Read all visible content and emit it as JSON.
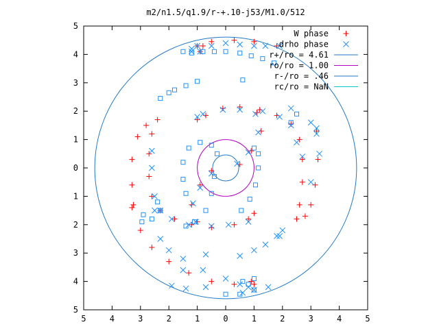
{
  "chart_data": {
    "type": "scatter",
    "title": "m2/n1.5/q1.9/r-+.10-j53/M1.0/512",
    "xlabel": "",
    "ylabel": "",
    "xlim": [
      -5,
      5
    ],
    "ylim": [
      -5,
      5
    ],
    "x_ticks": [
      -5,
      -4,
      -3,
      -2,
      -1,
      0,
      1,
      2,
      3,
      4,
      5
    ],
    "y_ticks": [
      -5,
      -4,
      -3,
      -2,
      -1,
      0,
      1,
      2,
      3,
      4,
      5
    ],
    "x_tick_labels": [
      "5",
      "4",
      "3",
      "2",
      "1",
      "0",
      "1",
      "2",
      "3",
      "4",
      "5"
    ],
    "y_tick_labels": [
      "5",
      "4",
      "3",
      "2",
      "1",
      "0",
      "1",
      "2",
      "3",
      "4",
      "5"
    ],
    "grid": false,
    "legend_position": "top-right",
    "series": [
      {
        "name": "W phase",
        "marker": "plus",
        "color": "#ff0000",
        "points": [
          [
            0.5,
            0.12
          ],
          [
            0.9,
            0.6
          ],
          [
            1.25,
            1.3
          ],
          [
            1.1,
            1.95
          ],
          [
            0.5,
            2.15
          ],
          [
            -0.1,
            2.1
          ],
          [
            -0.7,
            1.85
          ],
          [
            -1.0,
            1.7
          ],
          [
            1.2,
            2.05
          ],
          [
            1.8,
            1.85
          ],
          [
            2.3,
            1.55
          ],
          [
            2.6,
            1.0
          ],
          [
            2.7,
            0.3
          ],
          [
            2.7,
            -0.5
          ],
          [
            2.6,
            -1.3
          ],
          [
            2.5,
            -1.8
          ],
          [
            3.2,
            1.3
          ],
          [
            3.25,
            0.3
          ],
          [
            3.15,
            -0.6
          ],
          [
            3.0,
            -1.3
          ],
          [
            2.8,
            -1.7
          ],
          [
            -3.3,
            -1.4
          ],
          [
            -3.0,
            -2.2
          ],
          [
            -2.6,
            -2.8
          ],
          [
            -2.0,
            -3.3
          ],
          [
            -1.3,
            -3.7
          ],
          [
            -0.5,
            -4.0
          ],
          [
            0.3,
            -4.1
          ],
          [
            0.9,
            -4.0
          ],
          [
            1.0,
            -4.1
          ],
          [
            -0.5,
            -0.1
          ],
          [
            -0.9,
            -0.6
          ],
          [
            -1.2,
            -1.3
          ],
          [
            -1.0,
            -1.9
          ],
          [
            -0.5,
            -2.1
          ],
          [
            0.3,
            -2.0
          ],
          [
            0.8,
            -1.8
          ],
          [
            1.0,
            -1.6
          ],
          [
            -1.2,
            -2.0
          ],
          [
            -1.8,
            -1.8
          ],
          [
            -2.3,
            -1.5
          ],
          [
            -2.6,
            -1.0
          ],
          [
            -2.7,
            -0.3
          ],
          [
            -2.7,
            0.5
          ],
          [
            -2.6,
            1.2
          ],
          [
            -2.4,
            1.7
          ],
          [
            -3.25,
            -1.3
          ],
          [
            -3.3,
            -0.6
          ],
          [
            -3.3,
            0.3
          ],
          [
            -3.1,
            1.1
          ],
          [
            -2.8,
            1.5
          ],
          [
            1.8,
            4.3
          ],
          [
            1.0,
            4.45
          ],
          [
            0.3,
            4.5
          ],
          [
            -0.5,
            4.45
          ],
          [
            -1.0,
            4.3
          ],
          [
            -0.9,
            4.1
          ],
          [
            -0.8,
            4.3
          ]
        ]
      },
      {
        "name": "drho phase",
        "marker": "cross",
        "color": "#1e90ff",
        "points": [
          [
            0.4,
            0.15
          ],
          [
            0.8,
            0.55
          ],
          [
            1.15,
            1.25
          ],
          [
            1.05,
            1.9
          ],
          [
            0.5,
            2.05
          ],
          [
            -0.1,
            2.05
          ],
          [
            -0.8,
            1.9
          ],
          [
            -1.0,
            1.8
          ],
          [
            1.3,
            2.0
          ],
          [
            1.9,
            1.8
          ],
          [
            2.3,
            1.5
          ],
          [
            2.5,
            0.9
          ],
          [
            2.7,
            0.4
          ],
          [
            3.0,
            1.6
          ],
          [
            3.2,
            1.2
          ],
          [
            3.3,
            0.5
          ],
          [
            3.0,
            -0.5
          ],
          [
            2.3,
            2.1
          ],
          [
            3.2,
            1.4
          ],
          [
            -2.5,
            -1.5
          ],
          [
            -2.3,
            -2.5
          ],
          [
            -2.0,
            -2.9
          ],
          [
            -1.5,
            -3.2
          ],
          [
            -0.8,
            -3.6
          ],
          [
            0.0,
            -3.9
          ],
          [
            0.5,
            -4.1
          ],
          [
            0.8,
            -4.2
          ],
          [
            1.0,
            -4.3
          ],
          [
            0.6,
            -4.4
          ],
          [
            -0.5,
            -0.2
          ],
          [
            -0.9,
            -0.7
          ],
          [
            -1.15,
            -1.25
          ],
          [
            -1.05,
            -1.9
          ],
          [
            -0.5,
            -2.05
          ],
          [
            0.1,
            -2.0
          ],
          [
            0.8,
            -1.9
          ],
          [
            -1.3,
            -2.0
          ],
          [
            -1.9,
            -1.8
          ],
          [
            -2.3,
            -1.5
          ],
          [
            -2.5,
            -1.0
          ],
          [
            -2.6,
            0.0
          ],
          [
            -2.6,
            0.6
          ],
          [
            -1.5,
            -3.6
          ],
          [
            -1.9,
            -4.15
          ],
          [
            -1.4,
            -4.25
          ],
          [
            -0.7,
            -4.2
          ],
          [
            1.0,
            -2.9
          ],
          [
            1.4,
            -2.7
          ],
          [
            1.8,
            -2.4
          ],
          [
            2.0,
            -2.2
          ],
          [
            0.5,
            -3.1
          ],
          [
            -0.7,
            -3.05
          ],
          [
            1.9,
            -2.4
          ],
          [
            1.5,
            -4.2
          ],
          [
            1.9,
            4.3
          ],
          [
            1.4,
            4.3
          ],
          [
            1.0,
            4.3
          ],
          [
            0.5,
            4.35
          ],
          [
            0.0,
            4.4
          ],
          [
            -0.5,
            4.3
          ],
          [
            -1.0,
            4.3
          ],
          [
            -1.2,
            4.2
          ],
          [
            -0.9,
            4.1
          ],
          [
            -1.2,
            4.1
          ]
        ]
      },
      {
        "name": "",
        "marker": "square",
        "color": "#1e90ff",
        "points": [
          [
            -1.5,
            4.1
          ],
          [
            -1.2,
            4.05
          ],
          [
            -0.8,
            4.1
          ],
          [
            -0.4,
            4.1
          ],
          [
            0.0,
            4.1
          ],
          [
            0.5,
            4.05
          ],
          [
            0.9,
            3.95
          ],
          [
            1.3,
            3.85
          ],
          [
            1.7,
            3.7
          ],
          [
            0.6,
            3.1
          ],
          [
            -1.0,
            3.05
          ],
          [
            -1.4,
            2.9
          ],
          [
            -1.8,
            2.75
          ],
          [
            -2.0,
            2.65
          ],
          [
            -2.3,
            2.45
          ],
          [
            2.3,
            1.6
          ],
          [
            2.5,
            1.9
          ],
          [
            -2.3,
            -1.5
          ],
          [
            -2.6,
            -1.8
          ],
          [
            -2.95,
            -1.9
          ],
          [
            -2.9,
            -1.65
          ],
          [
            -2.4,
            -1.2
          ],
          [
            -1.4,
            -2.05
          ],
          [
            -1.1,
            -1.9
          ],
          [
            -0.7,
            -1.5
          ],
          [
            -0.5,
            -0.9
          ],
          [
            -0.4,
            -0.3
          ],
          [
            0.55,
            -1.5
          ],
          [
            0.85,
            -1.1
          ],
          [
            1.05,
            -0.6
          ],
          [
            1.15,
            0.0
          ],
          [
            1.15,
            0.5
          ],
          [
            1.0,
            0.7
          ],
          [
            -0.3,
            0.5
          ],
          [
            -0.5,
            0.8
          ],
          [
            -0.9,
            0.9
          ],
          [
            -1.3,
            0.7
          ],
          [
            -1.5,
            0.2
          ],
          [
            -1.5,
            -0.4
          ],
          [
            -1.4,
            -0.9
          ],
          [
            0.6,
            -4.0
          ],
          [
            0.8,
            -4.1
          ],
          [
            1.0,
            -3.9
          ],
          [
            1.0,
            -4.3
          ],
          [
            0.5,
            -4.45
          ],
          [
            0.0,
            -4.45
          ]
        ]
      }
    ],
    "circles": [
      {
        "name": "r+/ro = 4.61",
        "radius": 4.61,
        "color": "#1f78c8"
      },
      {
        "name": "ro/ro = 1.00",
        "radius": 1.0,
        "color": "#b000c0"
      },
      {
        "name": "r-/ro = .46",
        "radius": 0.46,
        "color": "#1f78c8"
      },
      {
        "name": "rc/ro = NaN",
        "radius": null,
        "color": "#00c8c8"
      }
    ]
  }
}
